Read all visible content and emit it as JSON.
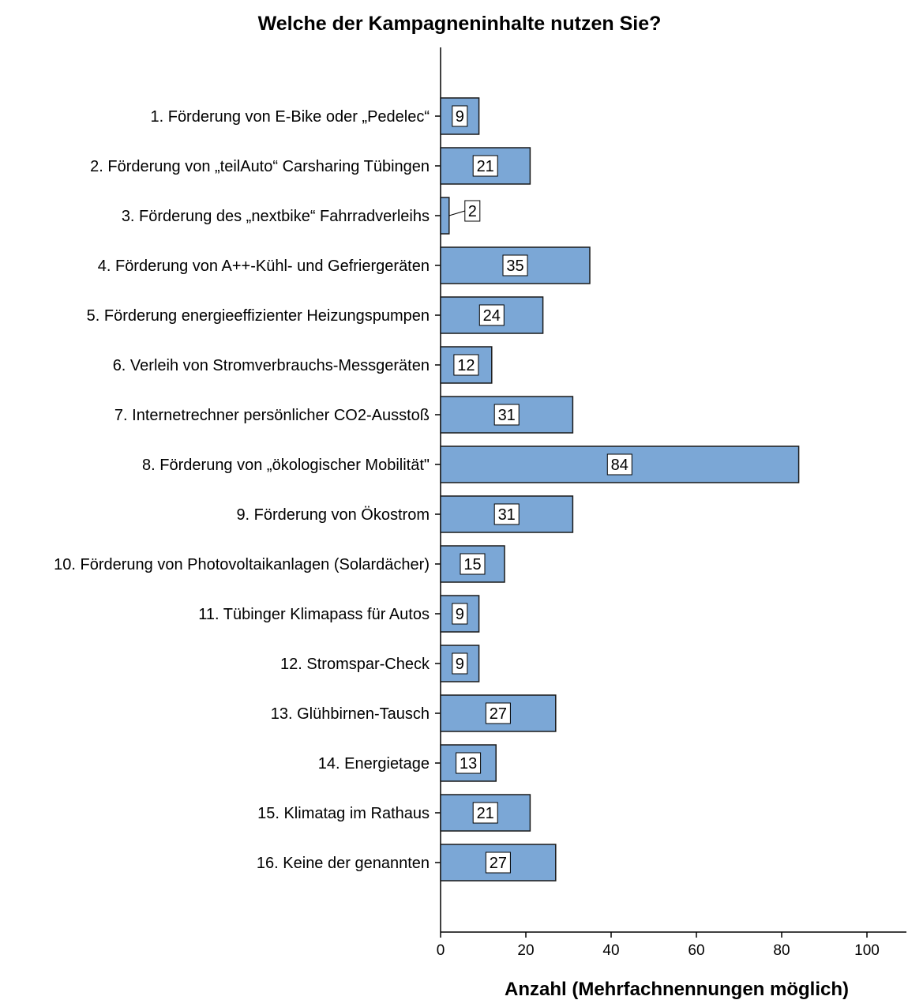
{
  "chart_data": {
    "type": "bar",
    "orientation": "horizontal",
    "title": "Welche der Kampagneninhalte nutzen Sie?",
    "xlabel": "Anzahl (Mehrfachnennungen möglich)",
    "ylabel": "",
    "xlim": [
      0,
      110
    ],
    "xticks": [
      0,
      20,
      40,
      60,
      80,
      100
    ],
    "xtick_labels": [
      "0",
      "20",
      "40",
      "60",
      "80",
      "100"
    ],
    "grid": false,
    "categories": [
      "1. Förderung von E-Bike oder „Pedelec“",
      "2. Förderung von „teilAuto“ Carsharing Tübingen",
      "3. Förderung des „nextbike“ Fahrradverleihs",
      "4. Förderung von A++-Kühl- und Gefriergeräten",
      "5. Förderung energieeffizienter Heizungspumpen",
      "6. Verleih von Stromverbrauchs-Messgeräten",
      "7. Internetrechner persönlicher CO2-Ausstoß",
      "8. Förderung von „ökologischer Mobilität\"",
      "9. Förderung von Ökostrom",
      "10. Förderung von Photovoltaikanlagen (Solardächer)",
      "11. Tübinger Klimapass für Autos",
      "12. Stromspar-Check",
      "13. Glühbirnen-Tausch",
      "14. Energietage",
      "15. Klimatag im Rathaus",
      "16. Keine der genannten"
    ],
    "values": [
      9,
      21,
      2,
      35,
      24,
      12,
      31,
      84,
      31,
      15,
      9,
      9,
      27,
      13,
      21,
      27
    ],
    "value_labels": [
      "9",
      "21",
      "2",
      "35",
      "24",
      "12",
      "31",
      "84",
      "31",
      "15",
      "9",
      "9",
      "27",
      "13",
      "21",
      "27"
    ],
    "colors": {
      "bar_fill": "#7BA7D6",
      "bar_stroke": "#1A1A1A",
      "axis": "#000000",
      "label_box_fill": "#FFFFFF"
    }
  }
}
